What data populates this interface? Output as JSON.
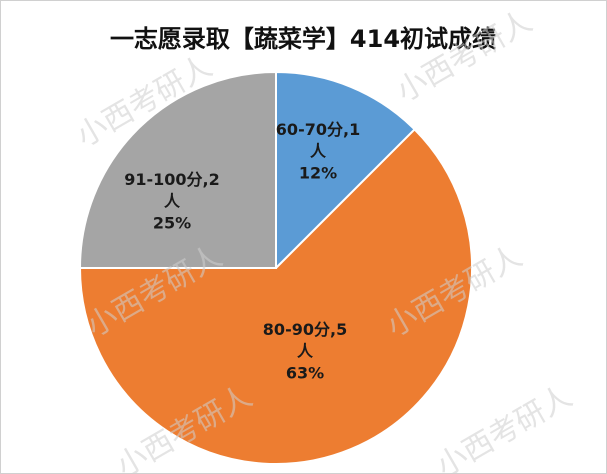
{
  "chart_data": {
    "type": "pie",
    "title": "一志愿录取【蔬菜学】414初试成绩",
    "categories": [
      "60-70分",
      "80-90分",
      "91-100分"
    ],
    "values": [
      1,
      5,
      2
    ],
    "label_separator": ",",
    "unit": "人",
    "percent_labels": [
      "12%",
      "63%",
      "25%"
    ],
    "colors": [
      "#5b9bd5",
      "#ed7d31",
      "#a5a5a5"
    ],
    "watermark": "小西考研人"
  }
}
